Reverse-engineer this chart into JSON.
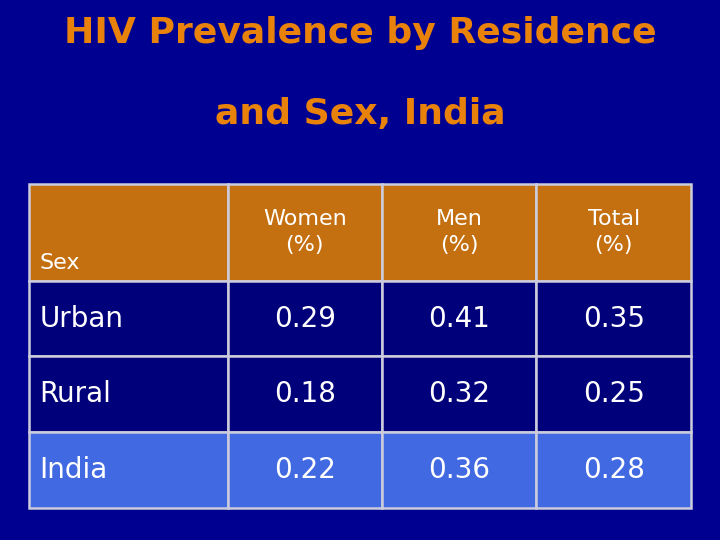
{
  "title_line1": "HIV Prevalence by Residence",
  "title_line2": "and Sex, India",
  "title_color": "#E8820A",
  "background_color": "#000090",
  "header_bg_color": "#C47010",
  "urban_rural_bg_color": "#00007A",
  "india_bg_color": "#4169E1",
  "table_border_color": "#CCCCDD",
  "text_color_white": "#FFFFFF",
  "header_row": [
    "Sex",
    "Women\n(%)",
    "Men\n(%)",
    "Total\n(%)"
  ],
  "rows": [
    [
      "Urban",
      "0.29",
      "0.41",
      "0.35"
    ],
    [
      "Rural",
      "0.18",
      "0.32",
      "0.25"
    ],
    [
      "India",
      "0.22",
      "0.36",
      "0.28"
    ]
  ],
  "title_fontsize": 26,
  "header_fontsize": 16,
  "data_fontsize": 20
}
